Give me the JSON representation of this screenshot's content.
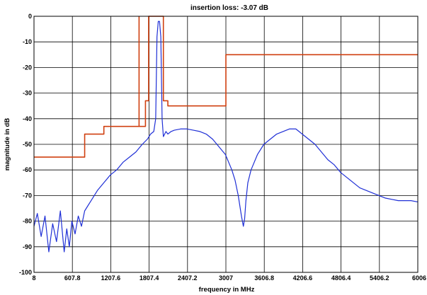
{
  "chart_data": {
    "type": "line",
    "title": "insertion loss: -3.07  dB",
    "xlabel": "frequency in MHz",
    "ylabel": "magnitude in dB",
    "xlim": [
      8,
      6006
    ],
    "ylim": [
      -100,
      0
    ],
    "xticks": [
      8,
      607.8,
      1207.6,
      1807.4,
      2407.2,
      3007,
      3606.8,
      4206.6,
      4806.4,
      5406.2,
      6006
    ],
    "xtick_labels": [
      "8",
      "607.8",
      "1207.6",
      "1807.4",
      "2407.2",
      "3007",
      "3606.8",
      "4206.6",
      "4806.4",
      "5406.2",
      "6006"
    ],
    "yticks": [
      0,
      -10,
      -20,
      -30,
      -40,
      -50,
      -60,
      -70,
      -80,
      -90,
      -100
    ],
    "ytick_labels": [
      "0",
      "-10",
      "-20",
      "-30",
      "-40",
      "-50",
      "-60",
      "-70",
      "-80",
      "-90",
      "-100"
    ],
    "grid": true,
    "series": [
      {
        "color": "#d04010",
        "style": "step",
        "x": [
          8,
          800,
          800,
          1100,
          1100,
          1600,
          1600,
          1600,
          1750,
          1750,
          1800,
          1800,
          1920,
          1920,
          2030,
          2030,
          2100,
          2100,
          3007,
          3007,
          6006
        ],
        "y": [
          -55,
          -55,
          -46,
          -46,
          -43,
          -43,
          -43,
          -43,
          -43,
          -33,
          -33,
          0,
          0,
          0,
          0,
          -33,
          -33,
          -35,
          -35,
          -15,
          -15
        ]
      },
      {
        "color": "#d04010",
        "style": "line",
        "x": [
          1650,
          1650
        ],
        "y": [
          0,
          -43
        ]
      },
      {
        "color": "#1f2fd6",
        "style": "line",
        "x": [
          8,
          60,
          120,
          180,
          240,
          300,
          360,
          420,
          480,
          520,
          560,
          600,
          650,
          700,
          750,
          800,
          850,
          900,
          1000,
          1100,
          1200,
          1300,
          1400,
          1500,
          1600,
          1700,
          1780,
          1830,
          1880,
          1910,
          1930,
          1950,
          1970,
          1990,
          2010,
          2030,
          2050,
          2070,
          2100,
          2150,
          2200,
          2300,
          2400,
          2500,
          2600,
          2700,
          2800,
          2900,
          3000,
          3100,
          3150,
          3200,
          3250,
          3280,
          3300,
          3320,
          3350,
          3400,
          3500,
          3600,
          3700,
          3800,
          3900,
          4000,
          4100,
          4150,
          4200,
          4300,
          4400,
          4500,
          4600,
          4700,
          4800,
          4900,
          5000,
          5100,
          5200,
          5300,
          5400,
          5500,
          5600,
          5700,
          5800,
          5900,
          6006
        ],
        "y": [
          -82,
          -77,
          -86,
          -78,
          -92,
          -81,
          -88,
          -76,
          -92,
          -83,
          -90,
          -80,
          -85,
          -78,
          -82,
          -76,
          -74,
          -72,
          -68,
          -65,
          -62,
          -60,
          -57,
          -55,
          -53,
          -50,
          -48,
          -46,
          -45,
          -40,
          -8,
          -2,
          -2,
          -8,
          -40,
          -47,
          -46,
          -45,
          -46,
          -45,
          -44.5,
          -44,
          -44,
          -44.5,
          -45,
          -46,
          -48,
          -51,
          -54,
          -60,
          -64,
          -70,
          -78,
          -82,
          -79,
          -72,
          -65,
          -60,
          -54,
          -50,
          -48,
          -46,
          -45,
          -44,
          -44,
          -45,
          -46,
          -48,
          -50,
          -53,
          -56,
          -58,
          -61,
          -63,
          -65,
          -67,
          -68,
          -69,
          -70,
          -71,
          -71.5,
          -72,
          -72,
          -72,
          -72.5
        ]
      }
    ]
  }
}
